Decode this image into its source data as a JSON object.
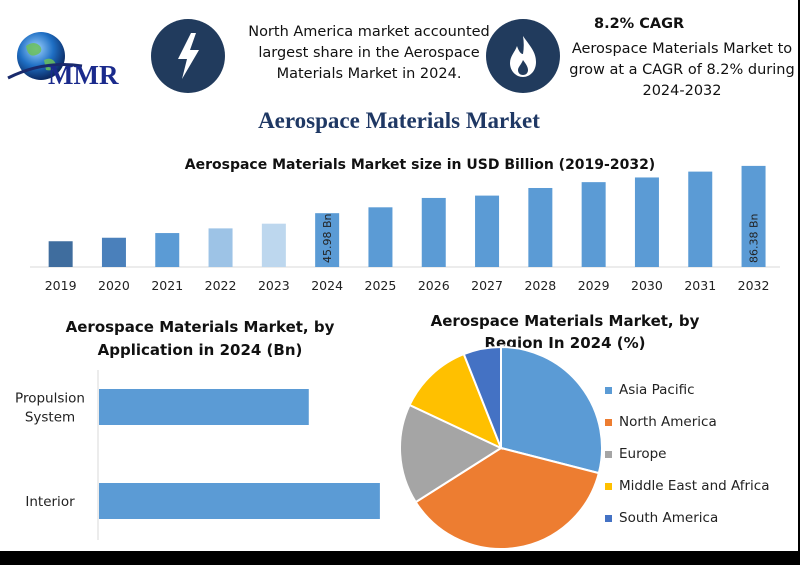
{
  "header": {
    "logo_text": "MMR",
    "share_text": "North America market accounted largest share in the Aerospace Materials Market in 2024.",
    "cagr_title": "8.2% CAGR",
    "cagr_text": "Aerospace Materials Market to grow at a CAGR of 8.2% during 2024-2032"
  },
  "title": "Aerospace Materials Market",
  "colors": {
    "navy": "#213b5d",
    "bar_blue": "#5b9bd5",
    "title_blue": "#1f3864"
  },
  "chart_data": [
    {
      "type": "bar",
      "title": "Aerospace Materials Market size in USD Billion (2019-2032)",
      "categories": [
        "2019",
        "2020",
        "2021",
        "2022",
        "2023",
        "2024",
        "2025",
        "2026",
        "2027",
        "2028",
        "2029",
        "2030",
        "2031",
        "2032"
      ],
      "values": [
        22.0,
        25.0,
        29.0,
        33.0,
        37.0,
        45.98,
        51.0,
        59.0,
        61.0,
        67.5,
        72.5,
        76.5,
        81.5,
        86.38
      ],
      "bar_colors": [
        "#3f6d9e",
        "#4a80bb",
        "#5b9bd5",
        "#9dc3e6",
        "#bdd7ee",
        "#5b9bd5",
        "#5b9bd5",
        "#5b9bd5",
        "#5b9bd5",
        "#5b9bd5",
        "#5b9bd5",
        "#5b9bd5",
        "#5b9bd5",
        "#5b9bd5"
      ],
      "data_labels": {
        "2024": "45.98 Bn",
        "2032": "86.38 Bn"
      },
      "xlabel": "",
      "ylabel": "",
      "ylim": [
        0,
        88
      ]
    },
    {
      "type": "bar",
      "orientation": "horizontal",
      "title": "Aerospace Materials Market, by Application in 2024 (Bn)",
      "title_lines": [
        "Aerospace Materials Market, by",
        "Application in 2024 (Bn)"
      ],
      "categories": [
        [
          "Propulsion",
          "System"
        ],
        [
          "Interior"
        ]
      ],
      "values": [
        29.5,
        39.5
      ],
      "xlim": [
        0,
        45
      ],
      "color": "#5b9bd5"
    },
    {
      "type": "pie",
      "title": "Aerospace Materials Market, by Region In 2024 (%)",
      "title_lines": [
        "Aerospace Materials Market, by",
        "Region In 2024 (%)"
      ],
      "labels": [
        "Asia Pacific",
        "North America",
        "Europe",
        "Middle East and Africa",
        "South America"
      ],
      "values": [
        29,
        37,
        16,
        12,
        6
      ],
      "colors": [
        "#5b9bd5",
        "#ed7d31",
        "#a5a5a5",
        "#ffc000",
        "#4472c4"
      ],
      "legend_position": "right"
    }
  ]
}
